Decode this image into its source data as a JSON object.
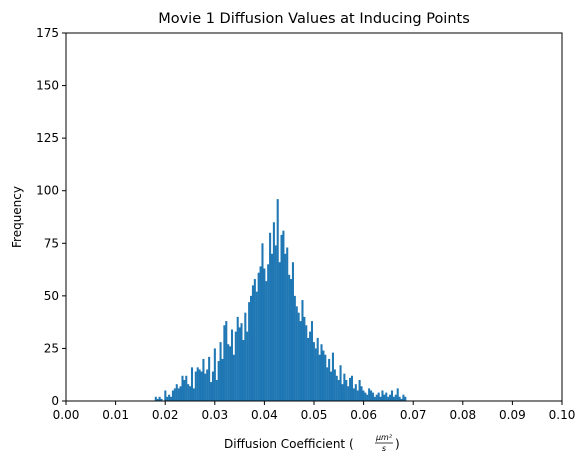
{
  "chart_data": {
    "type": "bar",
    "title": "Movie 1 Diffusion Values at Inducing Points",
    "xlabel": "Diffusion Coefficient (",
    "xlabel_math_numerator": "μm²",
    "xlabel_math_denominator": "s",
    "xlabel_close": ")",
    "ylabel": "Frequency",
    "xlim": [
      0,
      0.1
    ],
    "ylim": [
      0,
      175
    ],
    "xticks": [
      "0.00",
      "0.01",
      "0.02",
      "0.03",
      "0.04",
      "0.05",
      "0.06",
      "0.07",
      "0.08",
      "0.09",
      "0.10"
    ],
    "yticks": [
      "0",
      "25",
      "50",
      "75",
      "100",
      "125",
      "150",
      "175"
    ],
    "bar_color": "#1f77b4",
    "bin_start": 0.0179,
    "bin_width": 0.000384,
    "values": [
      2,
      1,
      2,
      1,
      0,
      5,
      2,
      3,
      2,
      5,
      6,
      8,
      6,
      7,
      12,
      10,
      12,
      8,
      7,
      16,
      6,
      14,
      16,
      15,
      14,
      20,
      13,
      15,
      21,
      9,
      14,
      25,
      10,
      19,
      28,
      20,
      36,
      38,
      27,
      26,
      34,
      22,
      33,
      40,
      35,
      37,
      29,
      42,
      33,
      47,
      50,
      55,
      58,
      52,
      61,
      64,
      75,
      63,
      57,
      65,
      80,
      70,
      85,
      74,
      96,
      66,
      79,
      81,
      70,
      73,
      60,
      58,
      66,
      50,
      45,
      42,
      38,
      48,
      40,
      36,
      30,
      33,
      38,
      28,
      25,
      30,
      22,
      27,
      24,
      22,
      16,
      20,
      14,
      23,
      15,
      12,
      10,
      17,
      8,
      13,
      10,
      7,
      11,
      12,
      6,
      8,
      5,
      10,
      7,
      5,
      4,
      3,
      6,
      5,
      4,
      2,
      3,
      4,
      2,
      5,
      3,
      4,
      2,
      3,
      5,
      2,
      3,
      6,
      2,
      1,
      3,
      2
    ]
  }
}
